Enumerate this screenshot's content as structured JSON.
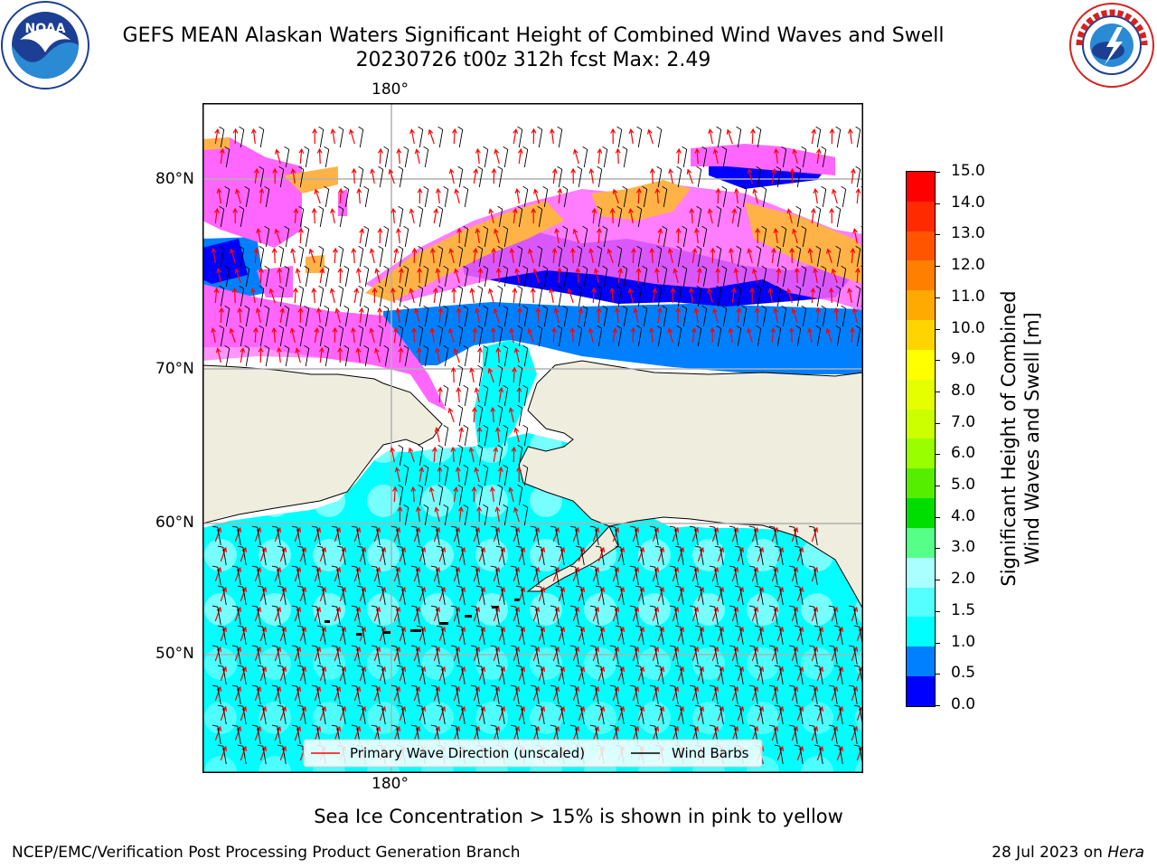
{
  "header": {
    "title_line1": "GEFS MEAN Alaskan Waters Significant Height of Combined Wind Waves and Swell",
    "title_line2": "20230726 t00z 312h fcst   Max: 2.49"
  },
  "logos": {
    "left": {
      "text": "NOAA",
      "icon": "noaa-logo"
    },
    "right": {
      "text": "NATIONAL WEATHER SERVICE",
      "icon": "nws-logo"
    }
  },
  "map": {
    "lon_label_top": "180°",
    "lon_label_bottom": "180°",
    "lat_labels": [
      "80°N",
      "70°N",
      "60°N",
      "50°N"
    ],
    "colors": {
      "land": "#efedde",
      "ocean_low": "#00ffff",
      "ocean_mid": "#0080ff",
      "ocean_dark": "#0000ff",
      "ice_pink": "#ff66ff",
      "ice_orange": "#ffb347",
      "arrow": "#ff0000",
      "barb": "#000000"
    },
    "legend": {
      "wave_direction": "Primary Wave Direction (unscaled)",
      "wind_barbs": "Wind Barbs"
    }
  },
  "colorbar": {
    "title_line1": "Significant Height of Combined",
    "title_line2": "Wind Waves and Swell [m]",
    "ticks": [
      "15.0",
      "14.0",
      "13.0",
      "12.0",
      "11.0",
      "10.0",
      "9.0",
      "8.0",
      "7.0",
      "6.0",
      "5.0",
      "4.0",
      "3.0",
      "2.0",
      "1.5",
      "1.0",
      "0.5",
      "0.0"
    ],
    "colors_top_to_bottom": [
      "#ff0000",
      "#ff2a00",
      "#ff5500",
      "#ff7f00",
      "#ffaa00",
      "#ffd400",
      "#ffff00",
      "#e5ff00",
      "#ccff00",
      "#99ff00",
      "#55ee00",
      "#00dd00",
      "#55ff88",
      "#aaffff",
      "#55ffff",
      "#00ffff",
      "#0080ff",
      "#0000ff"
    ]
  },
  "note": "Sea Ice Concentration > 15% is shown in pink to yellow",
  "footer": {
    "left": "NCEP/EMC/Verification Post Processing Product Generation Branch",
    "right_prefix": "28 Jul 2023 on ",
    "right_machine": "Hera"
  }
}
